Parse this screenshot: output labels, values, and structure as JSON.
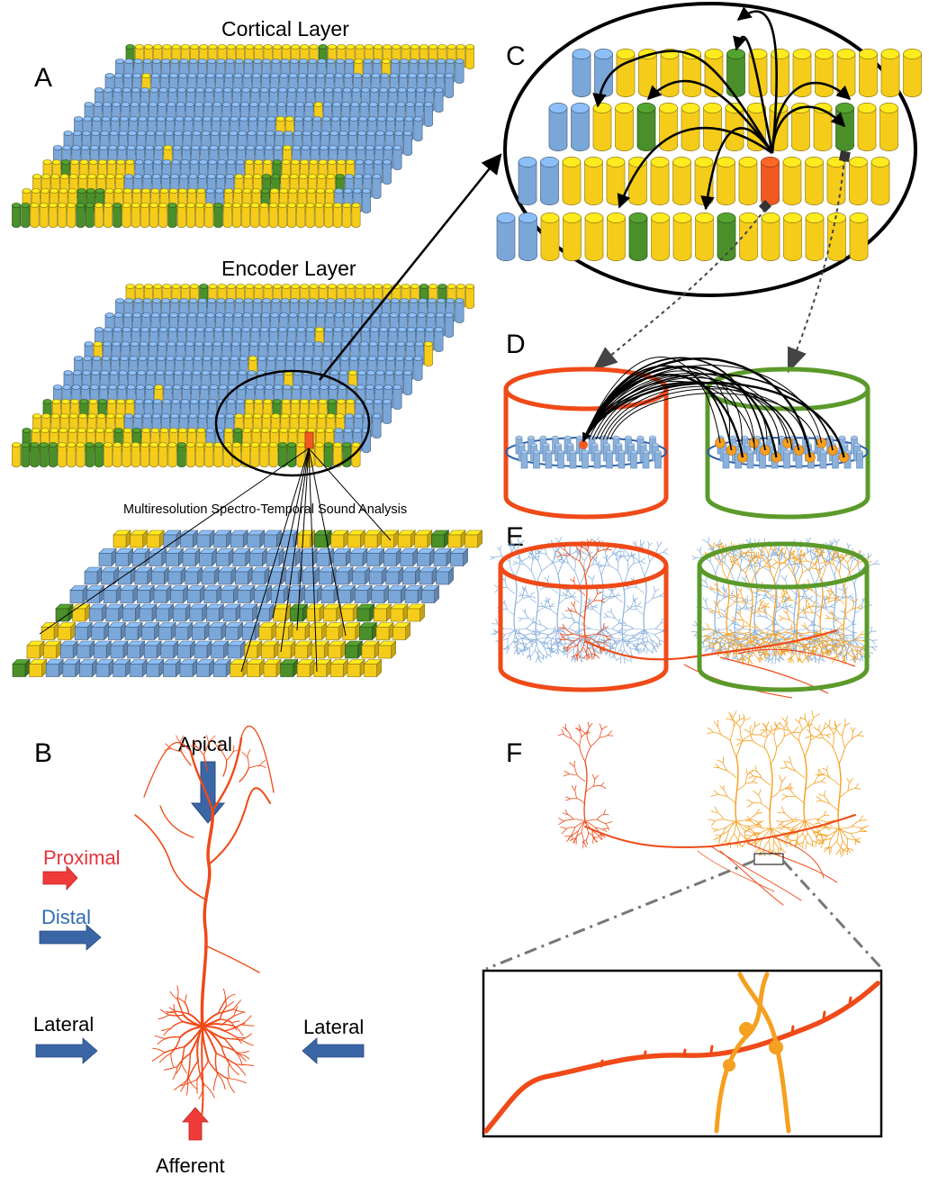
{
  "labels": {
    "panel_a": "A",
    "panel_b": "B",
    "panel_c": "C",
    "panel_d": "D",
    "panel_e": "E",
    "panel_f": "F",
    "cortical_layer": "Cortical Layer",
    "encoder_layer": "Encoder Layer",
    "sound_analysis": "Multiresolution Spectro-Temporal Sound Analysis",
    "apical": "Apical",
    "proximal": "Proximal",
    "distal": "Distal",
    "lateral_left": "Lateral",
    "lateral_right": "Lateral",
    "afferent": "Afferent"
  },
  "colors": {
    "inactive_column": "#7aa6d8",
    "active_column": "#f5cc1a",
    "winner_column": "#4a8f2a",
    "target_cell": "#f05a22",
    "neuron_orange_red": "#ef4a18",
    "neuron_orange": "#f5a020",
    "dendrite_blue": "#8cb2dc",
    "arrow_blue": "#3a66a6",
    "arrow_red": "#f03a3a",
    "distal_text": "#2f6db0",
    "proximal_text": "#e8333a",
    "column_red_outline": "#ef4a18",
    "column_green_outline": "#5b9a2a"
  }
}
